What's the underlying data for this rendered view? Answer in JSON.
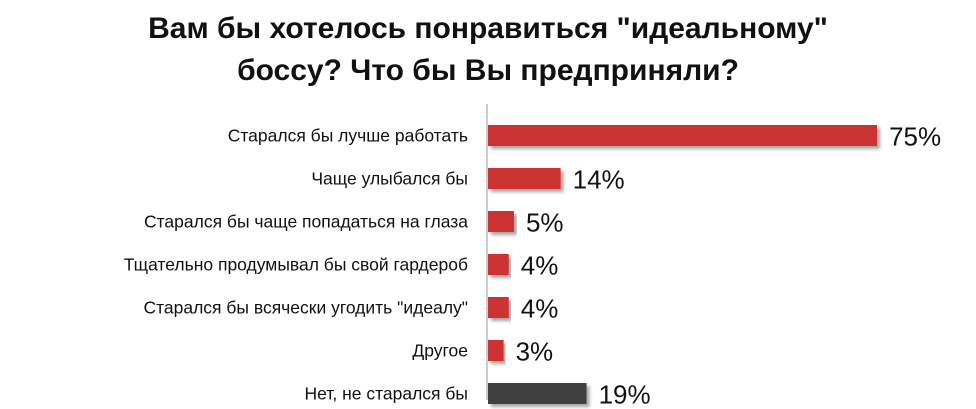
{
  "chart_data": {
    "type": "bar",
    "orientation": "horizontal",
    "title_lines": [
      "Вам бы хотелось понравиться \"идеальному\"",
      "боссу? Что бы Вы предприняли?"
    ],
    "categories": [
      "Старался бы лучше работать",
      "Чаще улыбался бы",
      "Старался бы чаще попадаться на глаза",
      "Тщательно продумывал бы свой гардероб",
      "Старался бы всячески угодить \"идеалу\"",
      "Другое",
      "Нет, не старался бы"
    ],
    "values": [
      75,
      14,
      5,
      4,
      4,
      3,
      19
    ],
    "value_labels": [
      "75%",
      "14%",
      "5%",
      "4%",
      "4%",
      "3%",
      "19%"
    ],
    "bar_colors": [
      "#cc3333",
      "#cc3333",
      "#cc3333",
      "#cc3333",
      "#cc3333",
      "#cc3333",
      "#404040"
    ],
    "xlim": [
      0,
      80
    ],
    "grid": false,
    "legend": "none"
  }
}
